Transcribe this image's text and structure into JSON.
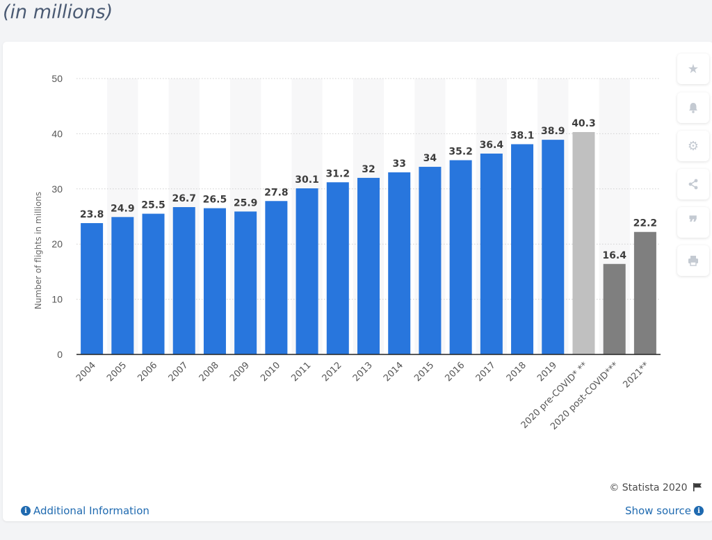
{
  "header": {
    "subtitle": "(in millions)"
  },
  "chart_data": {
    "type": "bar",
    "ylabel": "Number of flights in millions",
    "xlabel": "",
    "ylim": [
      0,
      50
    ],
    "yticks": [
      0,
      10,
      20,
      30,
      40,
      50
    ],
    "grid": true,
    "categories": [
      "2004",
      "2005",
      "2006",
      "2007",
      "2008",
      "2009",
      "2010",
      "2011",
      "2012",
      "2013",
      "2014",
      "2015",
      "2016",
      "2017",
      "2018",
      "2019",
      "2020 pre-COVID* **",
      "2020 post-COVID***",
      "2021**"
    ],
    "values": [
      23.8,
      24.9,
      25.5,
      26.7,
      26.5,
      25.9,
      27.8,
      30.1,
      31.2,
      32,
      33,
      34,
      35.2,
      36.4,
      38.1,
      38.9,
      40.3,
      16.4,
      22.2
    ],
    "labels": [
      "23.8",
      "24.9",
      "25.5",
      "26.7",
      "26.5",
      "25.9",
      "27.8",
      "30.1",
      "31.2",
      "32",
      "33",
      "34",
      "35.2",
      "36.4",
      "38.1",
      "38.9",
      "40.3",
      "16.4",
      "22.2"
    ],
    "colors": [
      "#2876dd",
      "#2876dd",
      "#2876dd",
      "#2876dd",
      "#2876dd",
      "#2876dd",
      "#2876dd",
      "#2876dd",
      "#2876dd",
      "#2876dd",
      "#2876dd",
      "#2876dd",
      "#2876dd",
      "#2876dd",
      "#2876dd",
      "#2876dd",
      "#c0c0c0",
      "#7f7f7f",
      "#7f7f7f"
    ]
  },
  "sidebar": {
    "buttons": [
      {
        "name": "star-icon",
        "glyph": "★"
      },
      {
        "name": "bell-icon",
        "glyph": "🔔"
      },
      {
        "name": "gear-icon",
        "glyph": "⚙"
      },
      {
        "name": "share-icon",
        "glyph": "⋖"
      },
      {
        "name": "quote-icon",
        "glyph": "❞"
      },
      {
        "name": "print-icon",
        "glyph": "⎙"
      }
    ]
  },
  "footer": {
    "copyright": "© Statista 2020",
    "additional_info": "Additional Information",
    "show_source": "Show source"
  }
}
